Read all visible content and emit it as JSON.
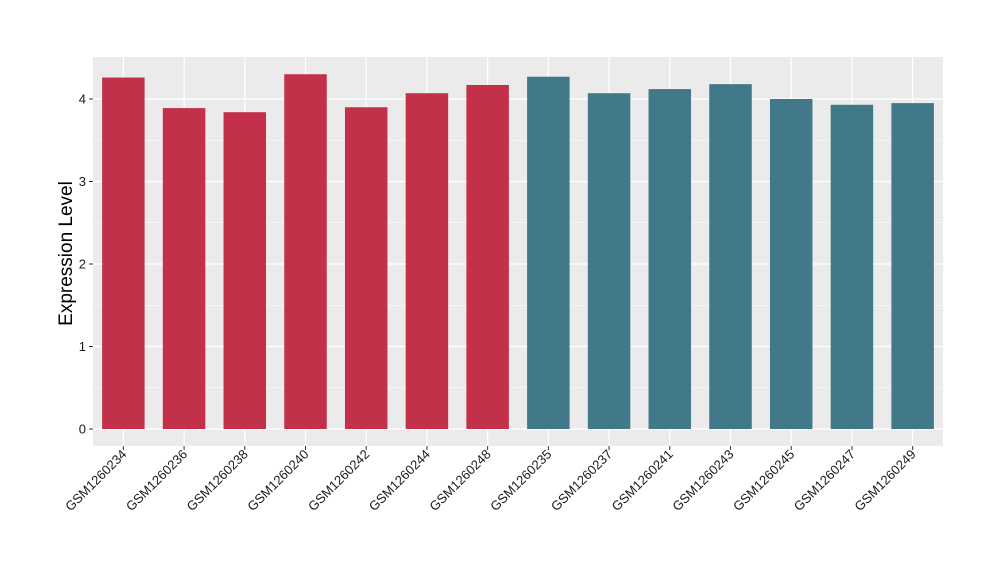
{
  "chart_data": {
    "type": "bar",
    "title": "",
    "xlabel": "",
    "ylabel": "Expression Level",
    "ylim": [
      0,
      4.5
    ],
    "yticks": [
      0,
      1,
      2,
      3,
      4
    ],
    "grid": true,
    "legend": "none",
    "panel_background": "#ebebeb",
    "gridline_color": "#ffffff",
    "categories": [
      "GSM1260234",
      "GSM1260236",
      "GSM1260238",
      "GSM1260240",
      "GSM1260242",
      "GSM1260244",
      "GSM1260248",
      "GSM1260235",
      "GSM1260237",
      "GSM1260241",
      "GSM1260243",
      "GSM1260245",
      "GSM1260247",
      "GSM1260249"
    ],
    "values": [
      4.26,
      3.89,
      3.84,
      4.3,
      3.9,
      4.07,
      4.17,
      4.27,
      4.07,
      4.12,
      4.18,
      4.0,
      3.93,
      3.95
    ],
    "bar_colors": [
      "#c3304a",
      "#c3304a",
      "#c3304a",
      "#c3304a",
      "#c3304a",
      "#c3304a",
      "#c3304a",
      "#41788a",
      "#41788a",
      "#41788a",
      "#41788a",
      "#41788a",
      "#41788a",
      "#41788a"
    ]
  }
}
